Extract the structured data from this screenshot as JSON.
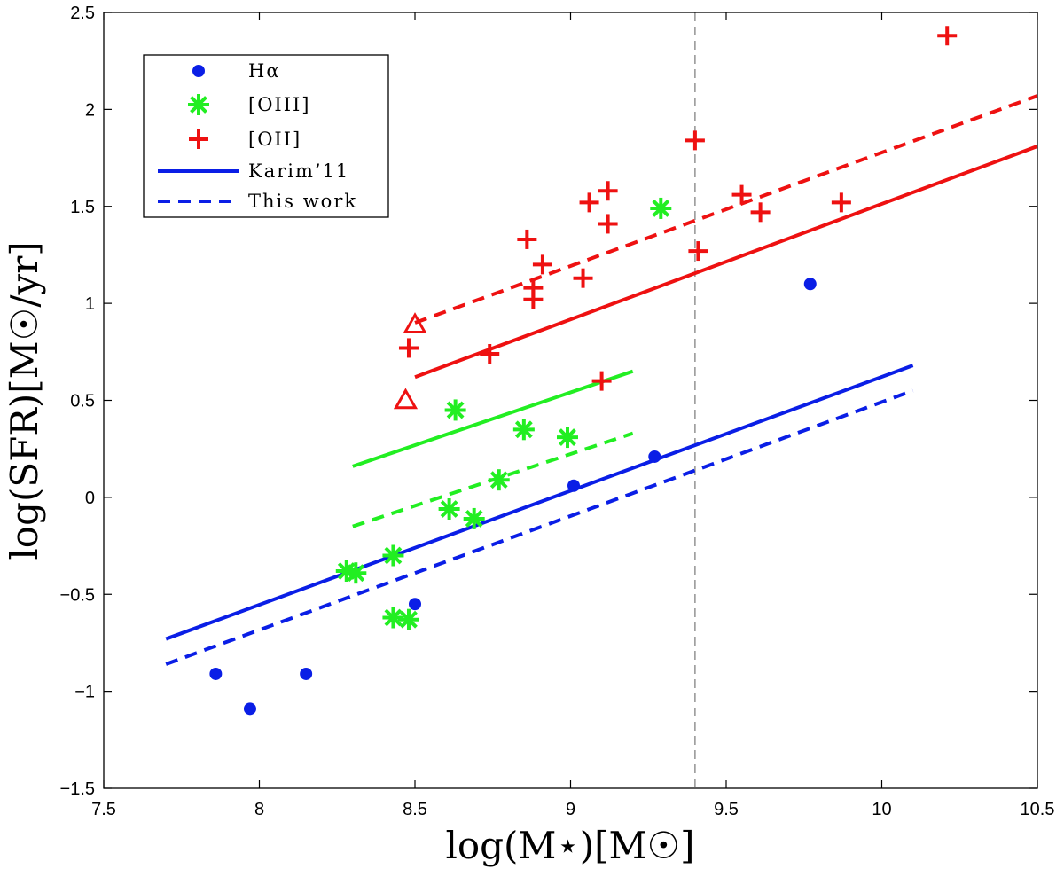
{
  "chart_data": {
    "type": "scatter",
    "xlabel": "log(M⋆)[M☉]",
    "ylabel": "log(SFR)[M☉/yr]",
    "xlim": [
      7.5,
      10.5
    ],
    "ylim": [
      -1.5,
      2.5
    ],
    "xticks": [
      7.5,
      8,
      8.5,
      9,
      9.5,
      10,
      10.5
    ],
    "xtick_labels": [
      "7.5",
      "8",
      "8.5",
      "9",
      "9.5",
      "10",
      "10.5"
    ],
    "yticks": [
      -1.5,
      -1,
      -0.5,
      0,
      0.5,
      1,
      1.5,
      2,
      2.5
    ],
    "ytick_labels": [
      "−1.5",
      "−1",
      "−0.5",
      "0",
      "0.5",
      "1",
      "1.5",
      "2",
      "2.5"
    ],
    "vline_x": 9.4,
    "legend_position": "top-left",
    "legend": [
      {
        "label": "Hα",
        "marker": "dot",
        "color": "#0a1ee6"
      },
      {
        "label": "[OIII]",
        "marker": "asterisk",
        "color": "#22ee22"
      },
      {
        "label": "[OII]",
        "marker": "plus",
        "color": "#ee1111"
      },
      {
        "label": "Karim’11",
        "marker": "solid-line",
        "color": "#0a1ee6"
      },
      {
        "label": "This work",
        "marker": "dashed-line",
        "color": "#0a1ee6"
      }
    ],
    "series": [
      {
        "name": "Hα",
        "marker": "dot",
        "color": "#0a1ee6",
        "points": [
          [
            7.86,
            -0.91
          ],
          [
            7.97,
            -1.09
          ],
          [
            8.15,
            -0.91
          ],
          [
            8.5,
            -0.55
          ],
          [
            9.01,
            0.06
          ],
          [
            9.27,
            0.21
          ],
          [
            9.77,
            1.1
          ]
        ]
      },
      {
        "name": "[OIII]",
        "marker": "asterisk",
        "color": "#22ee22",
        "points": [
          [
            8.28,
            -0.38
          ],
          [
            8.31,
            -0.39
          ],
          [
            8.43,
            -0.3
          ],
          [
            8.43,
            -0.62
          ],
          [
            8.48,
            -0.63
          ],
          [
            8.63,
            0.45
          ],
          [
            8.61,
            -0.06
          ],
          [
            8.69,
            -0.11
          ],
          [
            8.77,
            0.09
          ],
          [
            8.85,
            0.35
          ],
          [
            8.99,
            0.31
          ],
          [
            9.29,
            1.49
          ]
        ]
      },
      {
        "name": "[OII]",
        "marker": "plus",
        "color": "#ee1111",
        "points": [
          [
            8.48,
            0.77
          ],
          [
            8.74,
            0.74
          ],
          [
            8.86,
            1.33
          ],
          [
            8.88,
            1.08
          ],
          [
            8.88,
            1.02
          ],
          [
            8.91,
            1.2
          ],
          [
            9.04,
            1.13
          ],
          [
            9.06,
            1.52
          ],
          [
            9.12,
            1.58
          ],
          [
            9.12,
            1.41
          ],
          [
            9.1,
            0.6
          ],
          [
            9.4,
            1.84
          ],
          [
            9.41,
            1.27
          ],
          [
            9.55,
            1.56
          ],
          [
            9.61,
            1.47
          ],
          [
            9.87,
            1.52
          ],
          [
            10.21,
            2.38
          ]
        ]
      },
      {
        "name": "[OII] triangles",
        "marker": "triangle",
        "color": "#ee1111",
        "points": [
          [
            8.5,
            0.89
          ],
          [
            8.47,
            0.5
          ]
        ]
      }
    ],
    "lines": [
      {
        "name": "Karim’11 Hα",
        "style": "solid",
        "color": "#0a1ee6",
        "x": [
          7.7,
          10.1
        ],
        "y": [
          -0.73,
          0.68
        ]
      },
      {
        "name": "This work Hα",
        "style": "dashed",
        "color": "#0a1ee6",
        "x": [
          7.7,
          10.1
        ],
        "y": [
          -0.86,
          0.55
        ]
      },
      {
        "name": "Karim’11 [OIII]",
        "style": "solid",
        "color": "#22ee22",
        "x": [
          8.3,
          9.2
        ],
        "y": [
          0.16,
          0.65
        ]
      },
      {
        "name": "This work [OIII]",
        "style": "dashed",
        "color": "#22ee22",
        "x": [
          8.3,
          9.2
        ],
        "y": [
          -0.15,
          0.33
        ]
      },
      {
        "name": "Karim’11 [OII]",
        "style": "solid",
        "color": "#ee1111",
        "x": [
          8.5,
          10.5
        ],
        "y": [
          0.62,
          1.81
        ]
      },
      {
        "name": "This work [OII]",
        "style": "dashed",
        "color": "#ee1111",
        "x": [
          8.5,
          10.5
        ],
        "y": [
          0.9,
          2.07
        ]
      }
    ]
  }
}
